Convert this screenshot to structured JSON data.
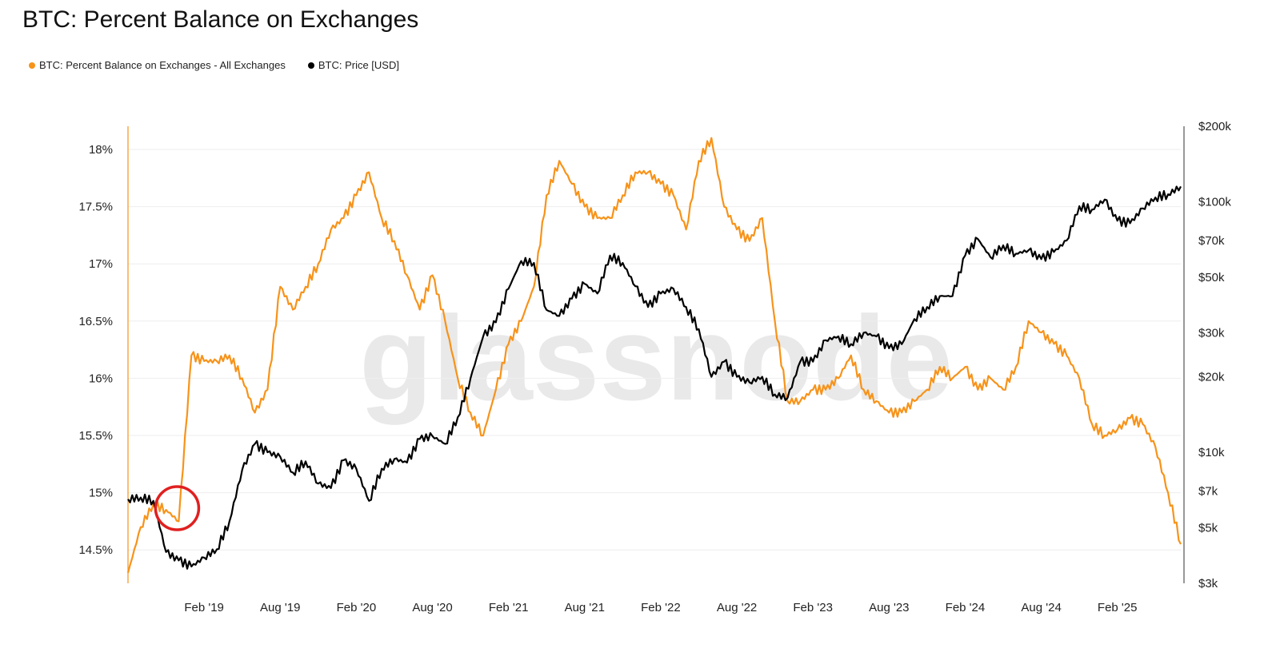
{
  "chart_data": {
    "type": "line",
    "title": "BTC: Percent Balance on Exchanges",
    "watermark": "glassnode",
    "legend_placement": "top-left",
    "grid": "horizontal",
    "x_ticks": [
      "Feb '19",
      "Aug '19",
      "Feb '20",
      "Aug '20",
      "Feb '21",
      "Aug '21",
      "Feb '22",
      "Aug '22",
      "Feb '23",
      "Aug '23",
      "Feb '24",
      "Aug '24",
      "Feb '25"
    ],
    "x_tick_dates": [
      "2019-02",
      "2019-08",
      "2020-02",
      "2020-08",
      "2021-02",
      "2021-08",
      "2022-02",
      "2022-08",
      "2023-02",
      "2023-08",
      "2024-02",
      "2024-08",
      "2025-02"
    ],
    "y_left": {
      "ticks": [
        "18%",
        "17.5%",
        "17%",
        "16.5%",
        "16%",
        "15.5%",
        "15%",
        "14.5%"
      ],
      "tick_values": [
        18,
        17.5,
        17,
        16.5,
        16,
        15.5,
        15,
        14.5
      ],
      "range": [
        14.2,
        18.2
      ]
    },
    "y_right": {
      "scale": "log",
      "ticks": [
        "$200k",
        "$100k",
        "$70k",
        "$50k",
        "$30k",
        "$20k",
        "$10k",
        "$7k",
        "$5k",
        "$3k"
      ],
      "tick_values": [
        200000,
        100000,
        70000,
        50000,
        30000,
        20000,
        10000,
        7000,
        5000,
        3000
      ],
      "range": [
        3000,
        200000
      ]
    },
    "x": [
      "2018-08",
      "2018-09",
      "2018-10",
      "2018-11",
      "2018-12",
      "2019-01",
      "2019-02",
      "2019-03",
      "2019-04",
      "2019-05",
      "2019-06",
      "2019-07",
      "2019-08",
      "2019-09",
      "2019-10",
      "2019-11",
      "2019-12",
      "2020-01",
      "2020-02",
      "2020-03",
      "2020-04",
      "2020-05",
      "2020-06",
      "2020-07",
      "2020-08",
      "2020-09",
      "2020-10",
      "2020-11",
      "2020-12",
      "2021-01",
      "2021-02",
      "2021-03",
      "2021-04",
      "2021-05",
      "2021-06",
      "2021-07",
      "2021-08",
      "2021-09",
      "2021-10",
      "2021-11",
      "2021-12",
      "2022-01",
      "2022-02",
      "2022-03",
      "2022-04",
      "2022-05",
      "2022-06",
      "2022-07",
      "2022-08",
      "2022-09",
      "2022-10",
      "2022-11",
      "2022-12",
      "2023-01",
      "2023-02",
      "2023-03",
      "2023-04",
      "2023-05",
      "2023-06",
      "2023-07",
      "2023-08",
      "2023-09",
      "2023-10",
      "2023-11",
      "2023-12",
      "2024-01",
      "2024-02",
      "2024-03",
      "2024-04",
      "2024-05",
      "2024-06",
      "2024-07",
      "2024-08",
      "2024-09",
      "2024-10",
      "2024-11",
      "2024-12",
      "2025-01",
      "2025-02",
      "2025-03",
      "2025-04",
      "2025-05",
      "2025-06",
      "2025-07"
    ],
    "series": [
      {
        "name": "BTC: Percent Balance on Exchanges - All Exchanges",
        "axis": "left",
        "color": "#f7931a",
        "values": [
          14.3,
          14.7,
          14.9,
          14.85,
          14.75,
          16.2,
          16.15,
          16.15,
          16.2,
          16.0,
          15.7,
          15.9,
          16.8,
          16.6,
          16.8,
          17.0,
          17.3,
          17.4,
          17.6,
          17.8,
          17.4,
          17.2,
          16.9,
          16.6,
          16.9,
          16.5,
          16.0,
          15.7,
          15.5,
          15.9,
          16.3,
          16.5,
          16.8,
          17.6,
          17.9,
          17.7,
          17.5,
          17.4,
          17.4,
          17.6,
          17.8,
          17.8,
          17.7,
          17.6,
          17.3,
          17.9,
          18.1,
          17.5,
          17.3,
          17.2,
          17.4,
          16.5,
          15.8,
          15.8,
          15.9,
          15.9,
          16.0,
          16.2,
          15.9,
          15.8,
          15.7,
          15.7,
          15.8,
          15.9,
          16.1,
          16.0,
          16.1,
          15.9,
          16.0,
          15.9,
          16.1,
          16.5,
          16.4,
          16.3,
          16.2,
          16.0,
          15.6,
          15.5,
          15.55,
          15.65,
          15.6,
          15.4,
          15.0,
          14.55
        ]
      },
      {
        "name": "BTC: Price [USD]",
        "axis": "right",
        "color": "#000000",
        "values": [
          6500,
          6600,
          6400,
          4000,
          3700,
          3500,
          3800,
          4100,
          5300,
          8500,
          10800,
          10000,
          9600,
          8300,
          9200,
          7500,
          7200,
          9300,
          8600,
          6400,
          8600,
          9400,
          9100,
          11300,
          11600,
          10800,
          13800,
          19700,
          29000,
          33000,
          45000,
          58000,
          57000,
          37000,
          35000,
          41000,
          47000,
          43000,
          61000,
          57000,
          46000,
          38000,
          43000,
          45000,
          38000,
          31000,
          20000,
          23000,
          20000,
          19000,
          20000,
          17000,
          16500,
          23000,
          23000,
          28000,
          29000,
          27000,
          30000,
          29000,
          26000,
          27000,
          34000,
          38000,
          42000,
          42000,
          61000,
          71000,
          60000,
          67000,
          62000,
          64000,
          59000,
          63000,
          70000,
          96000,
          93000,
          102000,
          84000,
          82000,
          94000,
          104000,
          107000,
          115000
        ]
      }
    ],
    "annotation": {
      "type": "circle",
      "color": "#e02020",
      "date": "2018-12"
    }
  }
}
